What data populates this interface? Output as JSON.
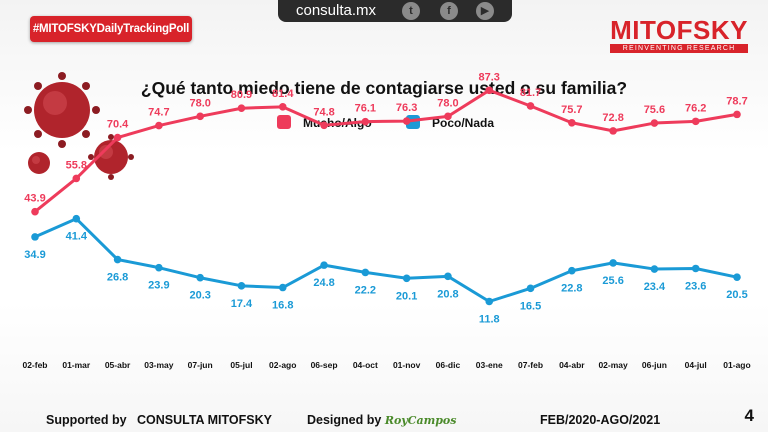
{
  "header": {
    "hashtag": "#MITOFSKYDailyTrackingPoll",
    "site": "consulta.mx",
    "logo_name": "MITOFSKY",
    "logo_tagline": "REINVENTING RESEARCH",
    "social_icons": [
      "twitter-icon",
      "facebook-icon",
      "youtube-icon"
    ]
  },
  "footer": {
    "supported_label": "Supported by",
    "supported_name": "CONSULTA  MITOFSKY",
    "designed_label": "Designed by",
    "designer": "RoyCampos",
    "period": "FEB/2020-AGO/2021",
    "page_number": "4"
  },
  "colors": {
    "series1": "#ee3b5b",
    "series2": "#1a9ad6",
    "accent": "#d8232a"
  },
  "chart_data": {
    "type": "line",
    "title": "¿Qué tanto miedo tiene de contagiarse usted o su familia?",
    "categories": [
      "02-feb",
      "01-mar",
      "05-abr",
      "03-may",
      "07-jun",
      "05-jul",
      "02-ago",
      "06-sep",
      "04-oct",
      "01-nov",
      "06-dic",
      "03-ene",
      "07-feb",
      "04-abr",
      "02-may",
      "06-jun",
      "04-jul",
      "01-ago"
    ],
    "series": [
      {
        "name": "Mucho/Algo",
        "values": [
          43.9,
          55.8,
          70.4,
          74.7,
          78.0,
          80.9,
          81.4,
          74.8,
          76.1,
          76.3,
          78.0,
          87.3,
          81.7,
          75.7,
          72.8,
          75.6,
          76.2,
          78.7
        ]
      },
      {
        "name": "Poco/Nada",
        "values": [
          34.9,
          41.4,
          26.8,
          23.9,
          20.3,
          17.4,
          16.8,
          24.8,
          22.2,
          20.1,
          20.8,
          11.8,
          16.5,
          22.8,
          25.6,
          23.4,
          23.6,
          20.5
        ]
      }
    ],
    "legend_position": "top-center",
    "grid": false
  }
}
